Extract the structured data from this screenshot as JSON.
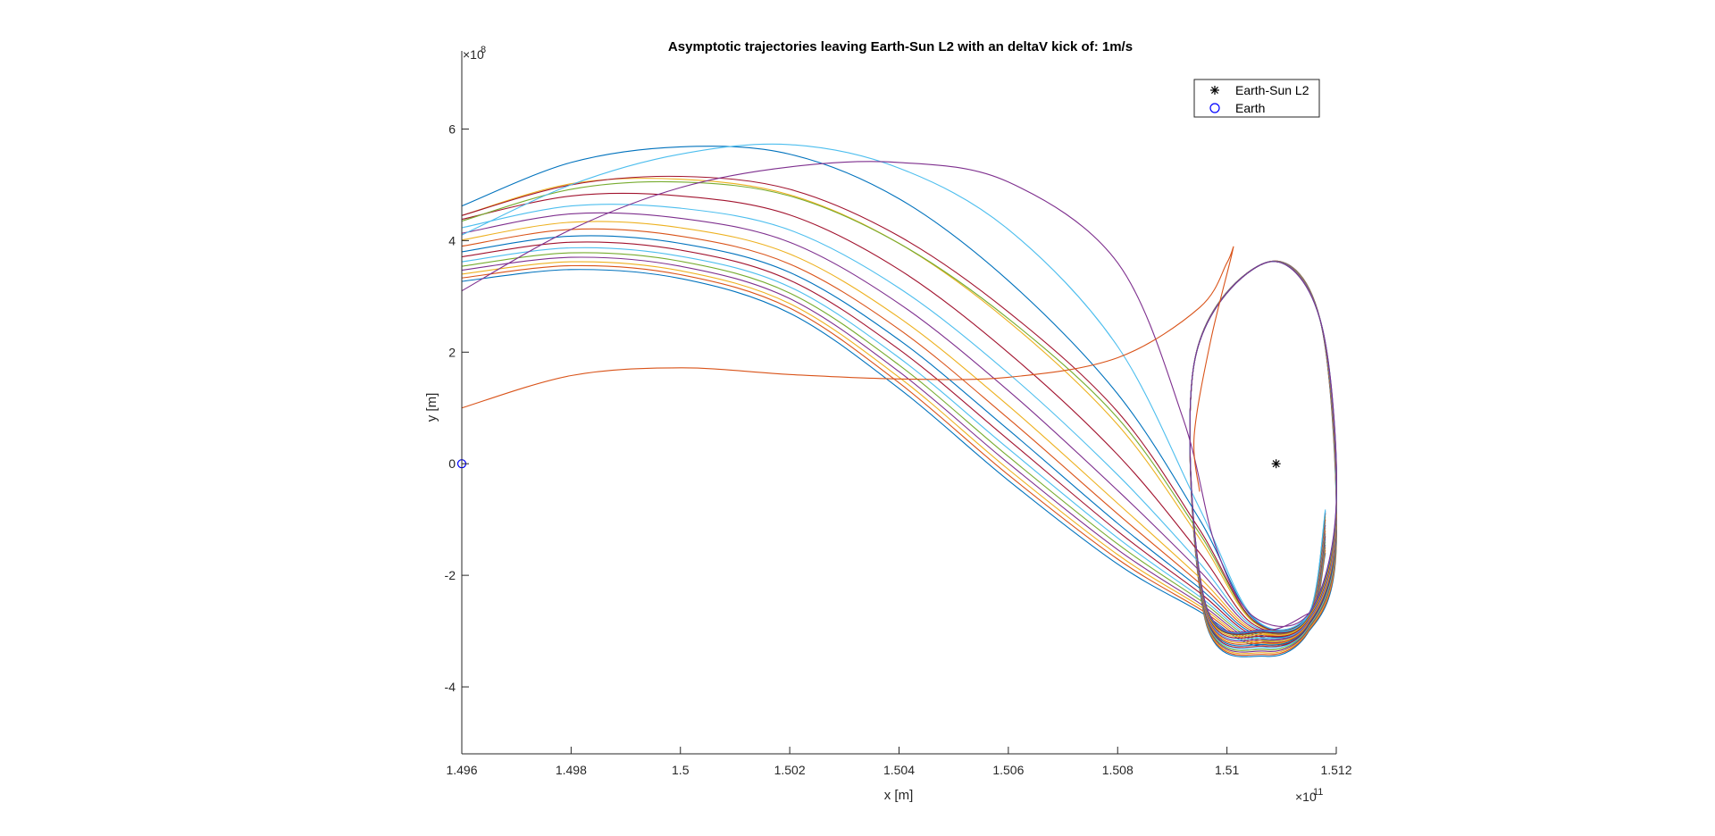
{
  "chart_data": {
    "type": "line",
    "title": "Asymptotic trajectories leaving Earth-Sun L2 with an deltaV kick of: 1m/s",
    "xlabel": "x [m]",
    "ylabel": "y [m]",
    "x_exponent_label": "×10",
    "x_exponent": "11",
    "y_exponent_label": "×10",
    "y_exponent": "8",
    "xlim": [
      1.496,
      1.512
    ],
    "ylim": [
      -5.2,
      7.4
    ],
    "x_ticks": [
      1.496,
      1.498,
      1.5,
      1.502,
      1.504,
      1.506,
      1.508,
      1.51,
      1.512
    ],
    "x_tick_labels": [
      "1.496",
      "1.498",
      "1.5",
      "1.502",
      "1.504",
      "1.506",
      "1.508",
      "1.51",
      "1.512"
    ],
    "y_ticks": [
      -4,
      -2,
      0,
      2,
      4,
      6
    ],
    "y_tick_labels": [
      "-4",
      "-2",
      "0",
      "2",
      "4",
      "6"
    ],
    "grid": false,
    "legend_position": "top-right",
    "legend": [
      {
        "label": "Earth-Sun L2",
        "marker": "asterisk",
        "color": "#000000"
      },
      {
        "label": "Earth",
        "marker": "circle",
        "color": "#0000ff"
      }
    ],
    "points": [
      {
        "name": "Earth-Sun L2",
        "x": 1.5109,
        "y": 0.0,
        "marker": "asterisk",
        "color": "#000000"
      },
      {
        "name": "Earth",
        "x": 1.496,
        "y": 0.0,
        "marker": "circle",
        "color": "#0000ff"
      }
    ],
    "series": [
      {
        "color": "#0072bd",
        "x": [
          1.496,
          1.498,
          1.5,
          1.502,
          1.504,
          1.506,
          1.508,
          1.5095,
          1.5105,
          1.5115,
          1.512,
          1.5117,
          1.5107,
          1.5094,
          1.5096,
          1.5107,
          1.5115,
          1.5118
        ],
        "y": [
          3.27,
          3.48,
          3.32,
          2.7,
          1.35,
          -0.3,
          -1.8,
          -2.65,
          -3.25,
          -3.0,
          -1.5,
          2.6,
          3.6,
          1.8,
          -2.8,
          -3.45,
          -3.0,
          -1.6
        ]
      },
      {
        "color": "#d95319",
        "x": [
          1.496,
          1.498,
          1.5,
          1.502,
          1.504,
          1.506,
          1.508,
          1.5095,
          1.5105,
          1.5115,
          1.512,
          1.5117,
          1.5107,
          1.5094,
          1.5096,
          1.5107,
          1.5115,
          1.5118
        ],
        "y": [
          3.33,
          3.55,
          3.39,
          2.79,
          1.45,
          -0.2,
          -1.71,
          -2.6,
          -3.22,
          -2.98,
          -1.45,
          2.6,
          3.6,
          1.8,
          -2.78,
          -3.42,
          -2.98,
          -1.55
        ]
      },
      {
        "color": "#edb120",
        "x": [
          1.496,
          1.498,
          1.5,
          1.502,
          1.504,
          1.506,
          1.508,
          1.5095,
          1.5105,
          1.5115,
          1.512,
          1.5117,
          1.5107,
          1.5094,
          1.5096,
          1.5107,
          1.5115,
          1.5118
        ],
        "y": [
          3.4,
          3.62,
          3.46,
          2.87,
          1.55,
          -0.1,
          -1.63,
          -2.55,
          -3.19,
          -2.96,
          -1.4,
          2.6,
          3.6,
          1.8,
          -2.76,
          -3.39,
          -2.96,
          -1.5
        ]
      },
      {
        "color": "#7e2f8e",
        "x": [
          1.496,
          1.498,
          1.5,
          1.502,
          1.504,
          1.506,
          1.508,
          1.5095,
          1.5105,
          1.5115,
          1.512,
          1.5117,
          1.5107,
          1.5094,
          1.5096,
          1.5107,
          1.5115,
          1.5118
        ],
        "y": [
          3.47,
          3.7,
          3.54,
          2.96,
          1.65,
          0.01,
          -1.54,
          -2.5,
          -3.16,
          -2.94,
          -1.35,
          2.6,
          3.6,
          1.8,
          -2.74,
          -3.36,
          -2.94,
          -1.45
        ]
      },
      {
        "color": "#77ac30",
        "x": [
          1.496,
          1.498,
          1.5,
          1.502,
          1.504,
          1.506,
          1.508,
          1.5095,
          1.5105,
          1.5115,
          1.512,
          1.5117,
          1.5107,
          1.5094,
          1.5096,
          1.5107,
          1.5115,
          1.5118
        ],
        "y": [
          3.54,
          3.78,
          3.63,
          3.06,
          1.77,
          0.13,
          -1.44,
          -2.44,
          -3.13,
          -2.92,
          -1.3,
          2.6,
          3.6,
          1.8,
          -2.72,
          -3.33,
          -2.92,
          -1.4
        ]
      },
      {
        "color": "#4dbeee",
        "x": [
          1.496,
          1.498,
          1.5,
          1.502,
          1.504,
          1.506,
          1.508,
          1.5095,
          1.5105,
          1.5115,
          1.512,
          1.5117,
          1.5107,
          1.5094,
          1.5096,
          1.5107,
          1.5115,
          1.5118
        ],
        "y": [
          3.62,
          3.87,
          3.72,
          3.17,
          1.9,
          0.27,
          -1.33,
          -2.38,
          -3.1,
          -2.9,
          -1.25,
          2.6,
          3.6,
          1.8,
          -2.7,
          -3.3,
          -2.9,
          -1.35
        ]
      },
      {
        "color": "#a2142f",
        "x": [
          1.496,
          1.498,
          1.5,
          1.502,
          1.504,
          1.506,
          1.508,
          1.5095,
          1.5105,
          1.5115,
          1.512,
          1.5117,
          1.5107,
          1.5094,
          1.5096,
          1.5107,
          1.5115,
          1.5118
        ],
        "y": [
          3.71,
          3.97,
          3.83,
          3.29,
          2.05,
          0.43,
          -1.21,
          -2.31,
          -3.07,
          -2.88,
          -1.2,
          2.6,
          3.6,
          1.8,
          -2.68,
          -3.27,
          -2.88,
          -1.3
        ]
      },
      {
        "color": "#0072bd",
        "x": [
          1.496,
          1.498,
          1.5,
          1.502,
          1.504,
          1.506,
          1.508,
          1.5095,
          1.5105,
          1.5115,
          1.512,
          1.5117,
          1.5107,
          1.5094,
          1.5096,
          1.5107,
          1.5115,
          1.5118
        ],
        "y": [
          3.8,
          4.08,
          3.95,
          3.43,
          2.22,
          0.61,
          -1.07,
          -2.23,
          -3.04,
          -2.86,
          -1.15,
          2.6,
          3.6,
          1.8,
          -2.66,
          -3.24,
          -2.86,
          -1.25
        ]
      },
      {
        "color": "#d95319",
        "x": [
          1.496,
          1.498,
          1.5,
          1.502,
          1.504,
          1.506,
          1.508,
          1.5095,
          1.5105,
          1.5115,
          1.512,
          1.5117,
          1.5107,
          1.5094,
          1.5096,
          1.5107,
          1.5115,
          1.5118
        ],
        "y": [
          3.9,
          4.2,
          4.08,
          3.58,
          2.41,
          0.81,
          -0.9,
          -2.14,
          -3.01,
          -2.84,
          -1.1,
          2.6,
          3.6,
          1.8,
          -2.64,
          -3.21,
          -2.84,
          -1.2
        ]
      },
      {
        "color": "#edb120",
        "x": [
          1.496,
          1.498,
          1.5,
          1.502,
          1.504,
          1.506,
          1.508,
          1.5095,
          1.5105,
          1.5115,
          1.512,
          1.5117,
          1.5107,
          1.5094,
          1.5096,
          1.5107,
          1.5115,
          1.5118
        ],
        "y": [
          4.01,
          4.33,
          4.23,
          3.76,
          2.62,
          1.04,
          -0.71,
          -2.04,
          -2.98,
          -2.82,
          -1.05,
          2.6,
          3.6,
          1.8,
          -2.62,
          -3.18,
          -2.82,
          -1.15
        ]
      },
      {
        "color": "#7e2f8e",
        "x": [
          1.496,
          1.498,
          1.5,
          1.502,
          1.504,
          1.506,
          1.508,
          1.5095,
          1.5105,
          1.5115,
          1.512,
          1.5117,
          1.5107,
          1.5094,
          1.5096,
          1.5107,
          1.5115,
          1.5118
        ],
        "y": [
          4.13,
          4.48,
          4.4,
          3.97,
          2.87,
          1.31,
          -0.48,
          -1.92,
          -2.95,
          -2.8,
          -1.0,
          2.6,
          3.6,
          1.8,
          -2.6,
          -3.15,
          -2.8,
          -1.1
        ]
      },
      {
        "color": "#4dbeee",
        "x": [
          1.496,
          1.498,
          1.5,
          1.502,
          1.504,
          1.506,
          1.508,
          1.5095,
          1.5105,
          1.5115,
          1.512,
          1.5117,
          1.5107,
          1.5094,
          1.5096,
          1.5107,
          1.5115,
          1.5118
        ],
        "y": [
          4.23,
          4.62,
          4.58,
          4.19,
          3.15,
          1.62,
          -0.2,
          -1.78,
          -2.92,
          -2.78,
          -0.95,
          2.6,
          3.6,
          1.8,
          -2.58,
          -3.12,
          -2.78,
          -1.05
        ]
      },
      {
        "color": "#a2142f",
        "x": [
          1.496,
          1.498,
          1.5,
          1.502,
          1.504,
          1.506,
          1.508,
          1.5095,
          1.5105,
          1.5115,
          1.512,
          1.5117,
          1.5107,
          1.5094,
          1.5096,
          1.5107,
          1.5115,
          1.5118
        ],
        "y": [
          4.38,
          4.8,
          4.8,
          4.46,
          3.48,
          1.99,
          0.16,
          -1.6,
          -2.89,
          -2.76,
          -0.9,
          2.6,
          3.6,
          1.8,
          -2.56,
          -3.09,
          -2.76,
          -1.0
        ]
      },
      {
        "color": "#edb120",
        "x": [
          1.496,
          1.498,
          1.5,
          1.502,
          1.504,
          1.506,
          1.508,
          1.5095,
          1.5105,
          1.5115,
          1.512,
          1.5117,
          1.5107,
          1.5094,
          1.5096,
          1.5107,
          1.5115,
          1.5118
        ],
        "y": [
          4.45,
          5.02,
          5.1,
          4.82,
          3.95,
          2.55,
          0.7,
          -1.34,
          -2.85,
          -2.74,
          -0.85,
          2.6,
          3.6,
          1.8,
          -2.54,
          -3.06,
          -2.74,
          -0.95
        ]
      },
      {
        "color": "#77ac30",
        "x": [
          1.496,
          1.498,
          1.5,
          1.502,
          1.504,
          1.506,
          1.508,
          1.5095,
          1.5105,
          1.5115,
          1.512,
          1.5117,
          1.5107,
          1.5094,
          1.5096,
          1.5107,
          1.5115,
          1.5118
        ],
        "y": [
          4.35,
          4.92,
          5.05,
          4.8,
          3.95,
          2.6,
          0.82,
          -1.25,
          -2.83,
          -2.72,
          -0.8,
          2.6,
          3.6,
          1.8,
          -2.52,
          -3.03,
          -2.72,
          -0.9
        ]
      },
      {
        "color": "#a2142f",
        "x": [
          1.496,
          1.498,
          1.5,
          1.502,
          1.504,
          1.506,
          1.508,
          1.5095,
          1.5105,
          1.5115,
          1.512,
          1.5117,
          1.5107,
          1.5094,
          1.5096,
          1.5107,
          1.5115,
          1.5118
        ],
        "y": [
          4.45,
          5.0,
          5.15,
          4.92,
          4.08,
          2.72,
          0.93,
          -1.18,
          -2.82,
          -2.71,
          -0.78,
          2.6,
          3.6,
          1.8,
          -2.51,
          -3.02,
          -2.71,
          -0.88
        ]
      },
      {
        "color": "#0072bd",
        "x": [
          1.496,
          1.498,
          1.5,
          1.502,
          1.504,
          1.506,
          1.508,
          1.5095,
          1.5105,
          1.5115,
          1.512,
          1.5117,
          1.5107,
          1.5094,
          1.5096,
          1.5107,
          1.5115,
          1.5118
        ],
        "y": [
          4.62,
          5.4,
          5.68,
          5.55,
          4.75,
          3.28,
          1.25,
          -1.0,
          -2.79,
          -2.7,
          -0.75,
          2.6,
          3.6,
          1.8,
          -2.5,
          -3.0,
          -2.7,
          -0.85
        ]
      },
      {
        "color": "#4dbeee",
        "x": [
          1.496,
          1.498,
          1.5,
          1.502,
          1.504,
          1.506,
          1.508,
          1.5095,
          1.5105,
          1.5115,
          1.512,
          1.5117,
          1.5107,
          1.5094,
          1.5096,
          1.5107,
          1.5115,
          1.5118
        ],
        "y": [
          4.1,
          5.0,
          5.55,
          5.72,
          5.3,
          4.2,
          2.1,
          -0.8,
          -2.77,
          -2.69,
          -0.72,
          2.6,
          3.6,
          1.8,
          -2.49,
          -2.99,
          -2.69,
          -0.82
        ]
      },
      {
        "color": "#7e2f8e",
        "x": [
          1.496,
          1.498,
          1.5,
          1.502,
          1.504,
          1.506,
          1.508,
          1.5092,
          1.5098,
          1.5105,
          1.5115,
          1.512,
          1.5117,
          1.5107,
          1.5094,
          1.5096,
          1.5107,
          1.5115
        ],
        "y": [
          3.1,
          4.2,
          4.95,
          5.32,
          5.4,
          5.05,
          3.6,
          0.8,
          -1.5,
          -2.75,
          -2.68,
          -0.7,
          2.6,
          3.6,
          1.8,
          -2.48,
          -2.98,
          -2.68
        ]
      },
      {
        "color": "#d95319",
        "x": [
          1.496,
          1.498,
          1.5,
          1.502,
          1.504,
          1.506,
          1.508,
          1.5095,
          1.51,
          1.5101,
          1.5097,
          1.5094,
          1.5095
        ],
        "y": [
          1.0,
          1.58,
          1.72,
          1.6,
          1.52,
          1.55,
          1.9,
          2.8,
          3.6,
          3.8,
          2.2,
          0.5,
          -0.5
        ]
      }
    ]
  }
}
